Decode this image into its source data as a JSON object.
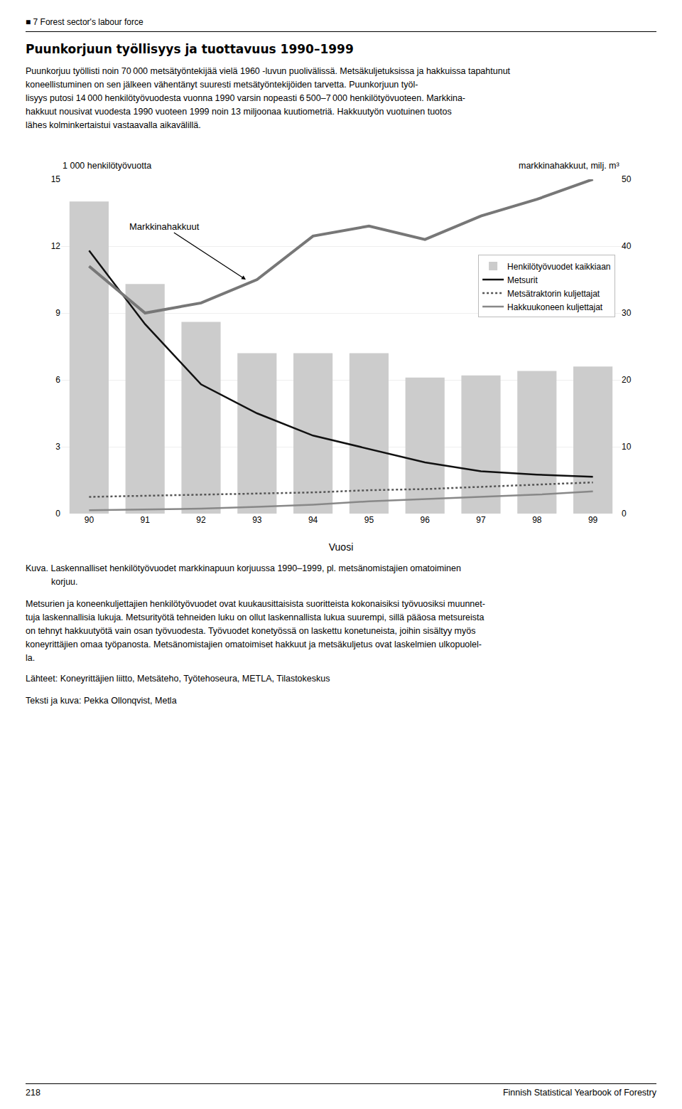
{
  "header": "■ 7 Forest sector's labour force",
  "body": [
    "Puunkorjuu työllisti noin 70 000 metsätyöntekijää vielä 1960 -luvun puolivälissä. Metsäkuljetuksissa ja hakkuissa tapahtunut",
    "koneellistuminen on sen jälkeen vähentänyt suuresti metsätyöntekijöiden tarvetta. Puunkorjuun työl-",
    "lisyys putosi 14 000 henkilötyövuodesta vuonna 1990 varsin nopeasti 6 500–7 000 henkilötyövuoteen. Markkina-",
    "hakkuut nousivat vuodesta 1990 vuoteen 1999 noin 13 miljoonaa kuutiometriä. Hakkuutyön vuotuinen tuotos",
    "lähes kolminkertaistui vastaavalla aikavälillä."
  ],
  "caption": [
    "Kuva. Laskennalliset henkilötyövuodet markkinapuun korjuussa 1990–1999, pl. metsänomistajien omatoiminen",
    "korjuu."
  ],
  "notes": [
    "Metsurien ja koneenkuljettajien henkilötyövuodet ovat kuukausittaisista suoritteista kokonaisiksi työvuosiksi muunnet-",
    "tuja laskennallisia lukuja. Metsurityötä tehneiden luku on ollut laskennallista lukua suurempi, sillä pääosa metsureista",
    "on tehnyt hakkuutyötä vain osan työvuodesta. Työvuodet konetyössä on laskettu konetuneista, joihin sisältyy myös",
    "koneyrittäjien omaa työpanosta. Metsänomistajien omatoimiset hakkuut ja metsäkuljetus ovat laskelmien ulkopuolel-",
    "la."
  ],
  "sources": "Lähteet: Koneyrittäjien liitto, Metsäteho, Työtehoseura, METLA, Tilastokeskus",
  "credit": "Teksti ja kuva: Pekka Ollonqvist, Metla",
  "page_left": "218",
  "page_right": "Finnish Statistical Yearbook of Forestry",
  "chart_data": {
    "type": "bar",
    "title": "Puunkorjuun työllisyys ja tuottavuus 1990–1999",
    "xlabel": "Vuosi",
    "ylabel": "1 000 henkilötyövuotta",
    "y2label": "markkinahakkuut, milj. m³",
    "categories": [
      "90",
      "91",
      "92",
      "93",
      "94",
      "95",
      "96",
      "97",
      "98",
      "99"
    ],
    "series": [
      {
        "name": "Henkilötyövuodet kaikkiaan",
        "type": "bar",
        "color": "#cccccc",
        "values": [
          14.0,
          10.3,
          8.6,
          7.2,
          7.2,
          7.2,
          6.1,
          6.2,
          6.4,
          6.6
        ]
      },
      {
        "name": "Metsurit",
        "type": "line",
        "color": "#111111",
        "line_style": "solid",
        "values": [
          11.8,
          8.5,
          5.8,
          4.5,
          3.5,
          2.9,
          2.3,
          1.9,
          1.75,
          1.65
        ]
      },
      {
        "name": "Metsätraktorin kuljettajat",
        "type": "line",
        "color": "#555555",
        "line_style": "dotted",
        "values": [
          0.75,
          0.8,
          0.85,
          0.9,
          0.95,
          1.05,
          1.1,
          1.2,
          1.3,
          1.4
        ]
      },
      {
        "name": "Hakkuukoneen kuljettajat",
        "type": "line",
        "color": "#888888",
        "line_style": "solid",
        "values": [
          0.15,
          0.18,
          0.22,
          0.3,
          0.4,
          0.55,
          0.65,
          0.75,
          0.85,
          1.0
        ]
      },
      {
        "name": "Markkinahakkuut",
        "type": "line",
        "color": "#777777",
        "line_style": "solid",
        "axis": "y2",
        "values": [
          37.0,
          30.0,
          31.5,
          35.0,
          41.5,
          43.0,
          41.0,
          44.5,
          47.0,
          50.0
        ]
      }
    ],
    "ylim": [
      0,
      15
    ],
    "yticks": [
      0,
      3,
      6,
      9,
      12,
      15
    ],
    "y2lim": [
      0,
      50
    ],
    "y2ticks": [
      0,
      10,
      20,
      30,
      40,
      50
    ],
    "grid": true,
    "legend": "right",
    "annotations": [
      {
        "text": "Markkinahakkuut",
        "x": 2.8,
        "y": 35.0,
        "axis": "y2"
      }
    ]
  }
}
